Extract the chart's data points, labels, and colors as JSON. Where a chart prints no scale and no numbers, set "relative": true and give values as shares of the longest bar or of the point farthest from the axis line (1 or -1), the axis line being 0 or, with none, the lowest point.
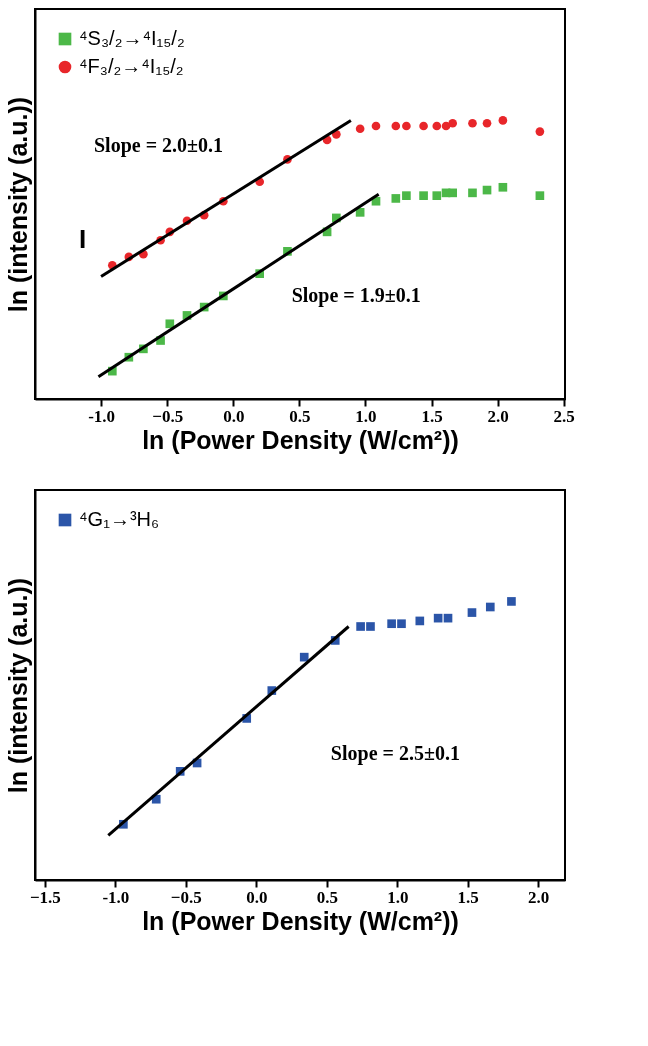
{
  "chart_data": [
    {
      "type": "scatter",
      "relative": true,
      "xlabel": "ln (Power Density (W/cm²))",
      "ylabel": "ln (intensity (a.u.))",
      "xlim": [
        -1.5,
        2.51
      ],
      "xticks": [
        {
          "value": -1.0,
          "label": "-1.0"
        },
        -0.5,
        {
          "value": 0.0,
          "label": "0.0"
        },
        0.5,
        {
          "value": 1.0,
          "label": "1.0"
        },
        1.5,
        {
          "value": 2.0,
          "label": "2.0"
        },
        2.5
      ],
      "tick_labels": "x",
      "grid": false,
      "legend": "top left",
      "series": [
        {
          "name": "⁴S₃/₂→⁴I₁₅/₂",
          "color": "#4cb848",
          "marker": "square",
          "x": [
            -0.915,
            -0.79,
            -0.68,
            -0.55,
            -0.48,
            -0.35,
            -0.22,
            -0.075,
            0.2,
            0.41,
            0.71,
            0.78,
            0.96,
            1.08,
            1.23,
            1.31,
            1.44,
            1.54,
            1.61,
            1.66,
            1.81,
            1.92,
            2.04,
            2.32
          ],
          "values": [
            0.1,
            0.15,
            0.18,
            0.21,
            0.27,
            0.3,
            0.33,
            0.37,
            0.45,
            0.53,
            0.6,
            0.65,
            0.67,
            0.71,
            0.72,
            0.73,
            0.73,
            0.73,
            0.74,
            0.74,
            0.74,
            0.75,
            0.76,
            0.73
          ]
        },
        {
          "name": "⁴F₃/₂→⁴I₁₅/₂",
          "color": "#e8262a",
          "marker": "circle",
          "x": [
            -0.915,
            -0.79,
            -0.68,
            -0.55,
            -0.48,
            -0.35,
            -0.22,
            -0.075,
            0.2,
            0.41,
            0.71,
            0.78,
            0.96,
            1.08,
            1.23,
            1.31,
            1.44,
            1.54,
            1.61,
            1.66,
            1.81,
            1.92,
            2.04,
            2.32
          ],
          "values": [
            0.48,
            0.51,
            0.52,
            0.57,
            0.6,
            0.64,
            0.66,
            0.71,
            0.78,
            0.86,
            0.93,
            0.95,
            0.97,
            0.98,
            0.98,
            0.98,
            0.98,
            0.98,
            0.98,
            0.99,
            0.99,
            0.99,
            1.0,
            0.96
          ]
        },
        {
          "type": "line",
          "color": "#000000",
          "marker": "none",
          "x": [
            -1.0,
            0.89
          ],
          "values": [
            0.44,
            1.0
          ]
        },
        {
          "type": "line",
          "color": "#000000",
          "marker": "none",
          "x": [
            -1.02,
            1.1
          ],
          "values": [
            0.08,
            0.735
          ]
        }
      ],
      "annotations": [
        "Slope = 2.0±0.1",
        "Slope = 1.9±0.1",
        "I"
      ]
    },
    {
      "type": "scatter",
      "relative": true,
      "xlabel": "ln (Power Density (W/cm²))",
      "ylabel": "ln (intensity (a.u.))",
      "xlim": [
        -1.57,
        2.19
      ],
      "xticks": [
        -1.5,
        {
          "value": -1.0,
          "label": "-1.0"
        },
        -0.5,
        {
          "value": 0.0,
          "label": "0.0"
        },
        0.5,
        {
          "value": 1.0,
          "label": "1.0"
        },
        1.5,
        {
          "value": 2.0,
          "label": "2.0"
        }
      ],
      "tick_labels": "x",
      "grid": false,
      "legend": "top left",
      "series": [
        {
          "name": "⁴G₁→³H₆",
          "color": "#2b55a8",
          "marker": "square",
          "x": [
            -0.943,
            -0.71,
            -0.54,
            -0.42,
            -0.068,
            0.11,
            0.34,
            0.56,
            0.74,
            0.81,
            0.96,
            1.03,
            1.16,
            1.29,
            1.36,
            1.53,
            1.66,
            1.81
          ],
          "values": [
            0.2,
            0.29,
            0.39,
            0.42,
            0.58,
            0.68,
            0.8,
            0.86,
            0.91,
            0.91,
            0.92,
            0.92,
            0.93,
            0.94,
            0.94,
            0.96,
            0.98,
            1.0
          ]
        },
        {
          "type": "line",
          "color": "#000000",
          "marker": "none",
          "x": [
            -1.05,
            0.655
          ],
          "values": [
            0.16,
            0.91
          ]
        }
      ],
      "annotations": [
        "Slope = 2.5±0.1"
      ]
    }
  ]
}
